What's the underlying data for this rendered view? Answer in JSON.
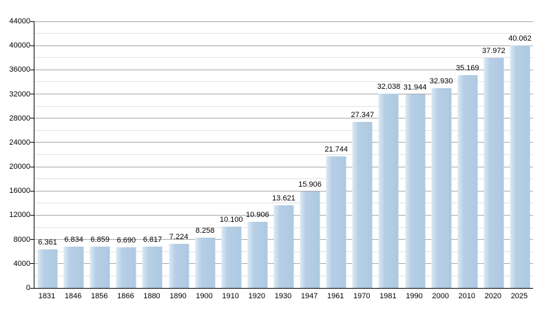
{
  "chart_data": {
    "type": "bar",
    "title": "",
    "xlabel": "",
    "ylabel": "",
    "categories": [
      "1831",
      "1846",
      "1856",
      "1866",
      "1880",
      "1890",
      "1900",
      "1910",
      "1920",
      "1930",
      "1947",
      "1961",
      "1970",
      "1981",
      "1990",
      "2000",
      "2010",
      "2020",
      "2025"
    ],
    "values": [
      6361,
      6834,
      6859,
      6690,
      6817,
      7224,
      8258,
      10100,
      10906,
      13621,
      15906,
      21744,
      27347,
      32038,
      31944,
      32930,
      35169,
      37972,
      40062
    ],
    "value_labels": [
      "6.361",
      "6.834",
      "6.859",
      "6.690",
      "6.817",
      "7.224",
      "8.258",
      "10.100",
      "10.906",
      "13.621",
      "15.906",
      "21.744",
      "27.347",
      "32.038",
      "31.944",
      "32.930",
      "35.169",
      "37.972",
      "40.062"
    ],
    "ylim": [
      0,
      44000
    ],
    "ytick_major_step": 4000,
    "ytick_minor_step": 2000,
    "ytick_labels": [
      "0",
      "4000",
      "8000",
      "12000",
      "16000",
      "20000",
      "24000",
      "28000",
      "32000",
      "36000",
      "40000",
      "44000"
    ],
    "grid": true,
    "legend_position": "none",
    "colors": {
      "bar_fill": "#b2cce4",
      "bar_highlight": "#dde9f4",
      "grid_major": "#a9a9a9",
      "grid_minor": "#e3e3e3",
      "axis": "#000000",
      "text": "#000000",
      "background": "#ffffff"
    }
  }
}
